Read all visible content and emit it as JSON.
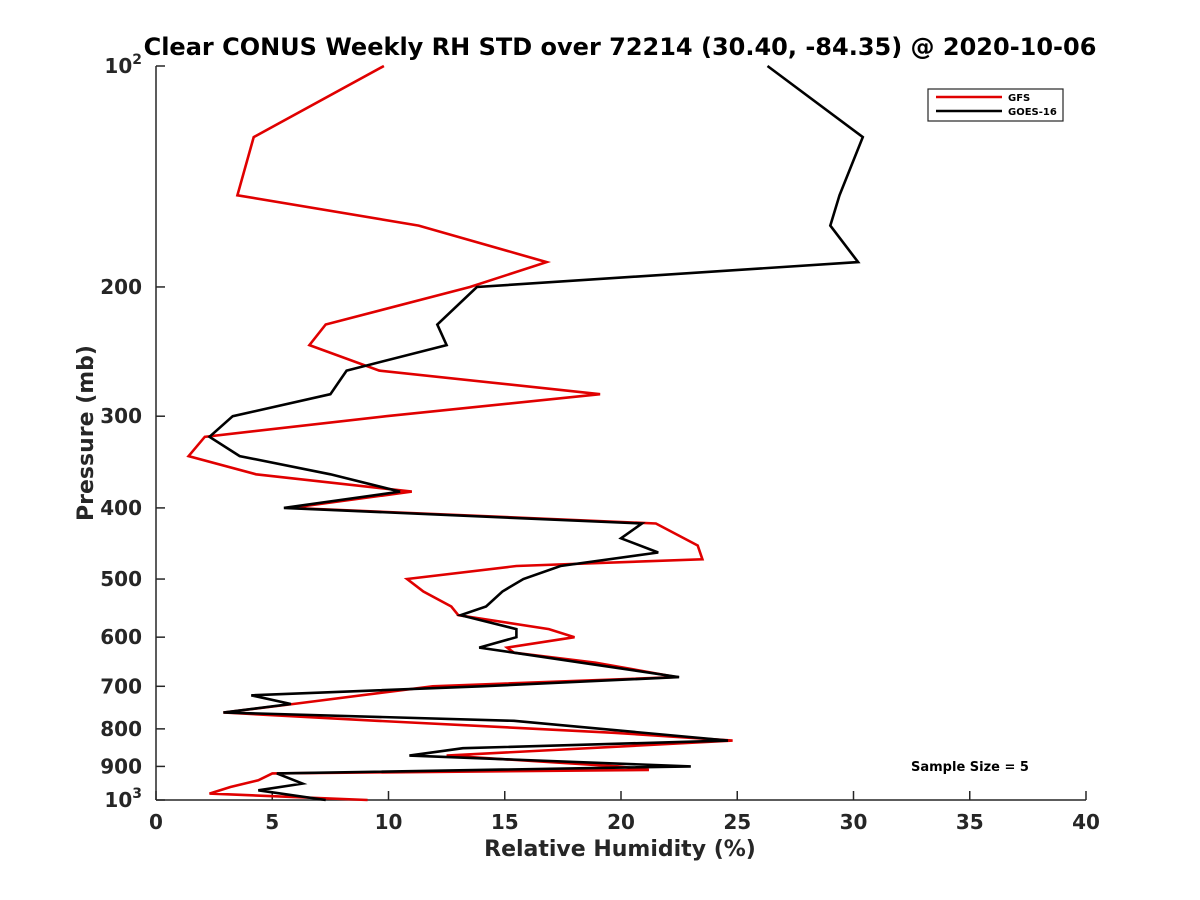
{
  "chart_data": {
    "type": "line",
    "title": "Clear CONUS Weekly RH STD over 72214 (30.40, -84.35) @ 2020-10-06",
    "xlabel": "Relative Humidity (%)",
    "ylabel": "Pressure (mb)",
    "xlim": [
      0,
      40
    ],
    "ylim": [
      100,
      1000
    ],
    "yscale": "log",
    "yreversed": true,
    "grid": false,
    "legend_position": "top-right",
    "x_ticks": [
      "0",
      "5",
      "10",
      "15",
      "20",
      "25",
      "30",
      "35",
      "40"
    ],
    "x_tick_values": [
      0,
      5,
      10,
      15,
      20,
      25,
      30,
      35,
      40
    ],
    "y_ticks": [
      {
        "value": 100,
        "label": "10",
        "sup": "2"
      },
      {
        "value": 200,
        "label": "200",
        "sup": ""
      },
      {
        "value": 300,
        "label": "300",
        "sup": ""
      },
      {
        "value": 400,
        "label": "400",
        "sup": ""
      },
      {
        "value": 500,
        "label": "500",
        "sup": ""
      },
      {
        "value": 600,
        "label": "600",
        "sup": ""
      },
      {
        "value": 700,
        "label": "700",
        "sup": ""
      },
      {
        "value": 800,
        "label": "800",
        "sup": ""
      },
      {
        "value": 900,
        "label": "900",
        "sup": ""
      },
      {
        "value": 1000,
        "label": "10",
        "sup": "3"
      }
    ],
    "series": [
      {
        "name": "GFS",
        "color": "#e00000",
        "points": [
          [
            9.8,
            100
          ],
          [
            4.2,
            125
          ],
          [
            3.5,
            150
          ],
          [
            11.3,
            165
          ],
          [
            16.8,
            185
          ],
          [
            13.5,
            200
          ],
          [
            7.3,
            225
          ],
          [
            6.6,
            240
          ],
          [
            9.6,
            260
          ],
          [
            19.1,
            280
          ],
          [
            9.9,
            300
          ],
          [
            2.1,
            320
          ],
          [
            1.4,
            340
          ],
          [
            4.3,
            360
          ],
          [
            11.0,
            380
          ],
          [
            5.8,
            400
          ],
          [
            21.5,
            420
          ],
          [
            23.3,
            450
          ],
          [
            23.5,
            470
          ],
          [
            15.5,
            480
          ],
          [
            10.8,
            500
          ],
          [
            11.5,
            520
          ],
          [
            12.7,
            545
          ],
          [
            13.0,
            560
          ],
          [
            16.9,
            585
          ],
          [
            18.0,
            600
          ],
          [
            15.1,
            620
          ],
          [
            15.4,
            630
          ],
          [
            18.9,
            650
          ],
          [
            22.4,
            680
          ],
          [
            11.9,
            700
          ],
          [
            5.9,
            740
          ],
          [
            2.9,
            760
          ],
          [
            9.5,
            780
          ],
          [
            19.7,
            810
          ],
          [
            24.8,
            830
          ],
          [
            12.5,
            870
          ],
          [
            19.9,
            900
          ],
          [
            21.2,
            910
          ],
          [
            5.0,
            920
          ],
          [
            4.4,
            940
          ],
          [
            3.2,
            960
          ],
          [
            2.3,
            980
          ],
          [
            9.1,
            1000
          ]
        ]
      },
      {
        "name": "GOES-16",
        "color": "#000000",
        "points": [
          [
            26.3,
            100
          ],
          [
            30.4,
            125
          ],
          [
            29.4,
            150
          ],
          [
            29.0,
            165
          ],
          [
            30.2,
            185
          ],
          [
            13.8,
            200
          ],
          [
            12.1,
            225
          ],
          [
            12.5,
            240
          ],
          [
            8.2,
            260
          ],
          [
            7.5,
            280
          ],
          [
            3.3,
            300
          ],
          [
            2.3,
            320
          ],
          [
            3.6,
            340
          ],
          [
            7.5,
            360
          ],
          [
            10.5,
            380
          ],
          [
            5.5,
            400
          ],
          [
            20.9,
            420
          ],
          [
            20.0,
            440
          ],
          [
            21.6,
            460
          ],
          [
            17.4,
            480
          ],
          [
            15.8,
            500
          ],
          [
            14.9,
            520
          ],
          [
            14.2,
            545
          ],
          [
            13.1,
            560
          ],
          [
            15.5,
            585
          ],
          [
            15.5,
            600
          ],
          [
            13.9,
            620
          ],
          [
            15.4,
            630
          ],
          [
            18.3,
            650
          ],
          [
            22.5,
            680
          ],
          [
            14.0,
            700
          ],
          [
            4.1,
            720
          ],
          [
            5.8,
            740
          ],
          [
            2.9,
            760
          ],
          [
            15.4,
            780
          ],
          [
            24.6,
            830
          ],
          [
            13.2,
            850
          ],
          [
            10.9,
            870
          ],
          [
            23.0,
            900
          ],
          [
            5.2,
            920
          ],
          [
            6.3,
            950
          ],
          [
            4.4,
            970
          ],
          [
            7.3,
            1000
          ]
        ]
      }
    ],
    "annotation": "Sample Size = 5"
  }
}
